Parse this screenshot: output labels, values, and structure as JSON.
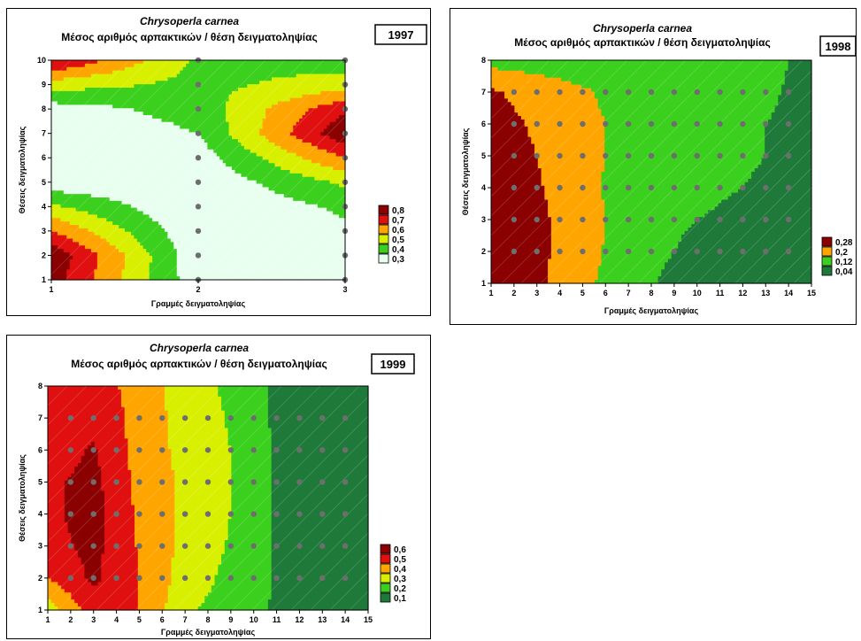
{
  "chart_data": [
    {
      "type": "heatmap",
      "subtype": "contour",
      "title": "Chrysoperla carnea",
      "subtitle": "Μέσος αριθμός αρπακτικών / θέση δειγματοληψίας",
      "year": "1997",
      "xlabel": "Γραμμές δειγματοληψίας",
      "ylabel": "Θέσεις δειγματοληψίας",
      "xlim": [
        1,
        3
      ],
      "ylim": [
        1,
        10
      ],
      "x_ticks": [
        "1",
        "2",
        "3"
      ],
      "y_ticks": [
        "1",
        "2",
        "3",
        "4",
        "5",
        "6",
        "7",
        "8",
        "9",
        "10"
      ],
      "legend_position": "right",
      "legend": [
        {
          "label": "0,8",
          "color": "#8b0000"
        },
        {
          "label": "0,7",
          "color": "#e01010"
        },
        {
          "label": "0,6",
          "color": "#ffa500"
        },
        {
          "label": "0,5",
          "color": "#d8f000"
        },
        {
          "label": "0,4",
          "color": "#3cd01e"
        },
        {
          "label": "0,3",
          "color": "#e8fff0"
        }
      ],
      "x": [
        1,
        2,
        3
      ],
      "y": [
        1,
        2,
        3,
        4,
        5,
        6,
        7,
        8,
        9,
        10
      ],
      "z": [
        [
          0.85,
          0.33,
          0.35
        ],
        [
          0.88,
          0.32,
          0.36
        ],
        [
          0.7,
          0.31,
          0.38
        ],
        [
          0.52,
          0.3,
          0.42
        ],
        [
          0.33,
          0.32,
          0.52
        ],
        [
          0.28,
          0.35,
          0.7
        ],
        [
          0.31,
          0.4,
          0.88
        ],
        [
          0.35,
          0.44,
          0.78
        ],
        [
          0.55,
          0.47,
          0.55
        ],
        [
          0.82,
          0.48,
          0.45
        ]
      ],
      "sample_points": "x = 2 and 3, y = 1..10"
    },
    {
      "type": "heatmap",
      "subtype": "contour",
      "title": "Chrysoperla carnea",
      "subtitle": "Μέσος αριθμός αρπακτικών / θέση δειγματοληψίας",
      "year": "1998",
      "xlabel": "Γραμμές δειγματοληψίας",
      "ylabel": "Θέσεις δειγματοληψίας",
      "xlim": [
        1,
        15
      ],
      "ylim": [
        1,
        8
      ],
      "x_ticks": [
        "1",
        "2",
        "3",
        "4",
        "5",
        "6",
        "7",
        "8",
        "9",
        "10",
        "11",
        "12",
        "13",
        "14",
        "15"
      ],
      "y_ticks": [
        "1",
        "2",
        "3",
        "4",
        "5",
        "6",
        "7",
        "8"
      ],
      "legend_position": "right",
      "legend": [
        {
          "label": "0,28",
          "color": "#8b0000"
        },
        {
          "label": "0,2",
          "color": "#ffa500"
        },
        {
          "label": "0,12",
          "color": "#3cd01e"
        },
        {
          "label": "0,04",
          "color": "#1f7a3a"
        }
      ],
      "x": [
        1,
        3,
        5,
        7,
        9,
        11,
        13,
        15
      ],
      "y": [
        1,
        2,
        3,
        4,
        5,
        6,
        7,
        8
      ],
      "z": [
        [
          0.33,
          0.3,
          0.22,
          0.15,
          0.1,
          0.06,
          0.03,
          0.03
        ],
        [
          0.33,
          0.3,
          0.23,
          0.16,
          0.12,
          0.09,
          0.05,
          0.05
        ],
        [
          0.32,
          0.3,
          0.23,
          0.17,
          0.13,
          0.11,
          0.08,
          0.08
        ],
        [
          0.32,
          0.29,
          0.22,
          0.17,
          0.15,
          0.13,
          0.11,
          0.1
        ],
        [
          0.32,
          0.28,
          0.22,
          0.18,
          0.17,
          0.14,
          0.12,
          0.1
        ],
        [
          0.31,
          0.27,
          0.22,
          0.18,
          0.17,
          0.14,
          0.12,
          0.1
        ],
        [
          0.29,
          0.25,
          0.21,
          0.17,
          0.16,
          0.14,
          0.13,
          0.1
        ],
        [
          0.17,
          0.16,
          0.15,
          0.15,
          0.15,
          0.15,
          0.14,
          0.1
        ]
      ],
      "sample_points": "x = 2..14, y = 2..7"
    },
    {
      "type": "heatmap",
      "subtype": "contour",
      "title": "Chrysoperla carnea",
      "subtitle": "Μέσος αριθμός αρπακτικών / θέση δειγματοληψίας",
      "year": "1999",
      "xlabel": "Γραμμές δειγματοληψίας",
      "ylabel": "Θέσεις δειγματοληψίας",
      "xlim": [
        1,
        15
      ],
      "ylim": [
        1,
        8
      ],
      "x_ticks": [
        "1",
        "2",
        "3",
        "4",
        "5",
        "6",
        "7",
        "8",
        "9",
        "10",
        "11",
        "12",
        "13",
        "14",
        "15"
      ],
      "y_ticks": [
        "1",
        "2",
        "3",
        "4",
        "5",
        "6",
        "7",
        "8"
      ],
      "legend_position": "right",
      "legend": [
        {
          "label": "0,6",
          "color": "#8b0000"
        },
        {
          "label": "0,5",
          "color": "#e01010"
        },
        {
          "label": "0,4",
          "color": "#ffa500"
        },
        {
          "label": "0,3",
          "color": "#d8f000"
        },
        {
          "label": "0,2",
          "color": "#3cd01e"
        },
        {
          "label": "0,1",
          "color": "#1f7a3a"
        }
      ],
      "x": [
        1,
        3,
        5,
        7,
        9,
        11,
        13,
        15
      ],
      "y": [
        1,
        2,
        3,
        4,
        5,
        6,
        7,
        8
      ],
      "z": [
        [
          0.35,
          0.55,
          0.5,
          0.32,
          0.25,
          0.19,
          0.15,
          0.15
        ],
        [
          0.5,
          0.62,
          0.5,
          0.36,
          0.27,
          0.19,
          0.16,
          0.14
        ],
        [
          0.56,
          0.63,
          0.49,
          0.37,
          0.29,
          0.19,
          0.15,
          0.13
        ],
        [
          0.58,
          0.64,
          0.48,
          0.38,
          0.3,
          0.19,
          0.15,
          0.11
        ],
        [
          0.58,
          0.63,
          0.47,
          0.38,
          0.3,
          0.19,
          0.14,
          0.08
        ],
        [
          0.55,
          0.61,
          0.46,
          0.37,
          0.3,
          0.19,
          0.13,
          0.06
        ],
        [
          0.52,
          0.58,
          0.46,
          0.36,
          0.29,
          0.18,
          0.12,
          0.06
        ],
        [
          0.5,
          0.55,
          0.46,
          0.35,
          0.28,
          0.18,
          0.12,
          0.06
        ]
      ],
      "sample_points": "x = 2..14, y = 2..7"
    }
  ]
}
